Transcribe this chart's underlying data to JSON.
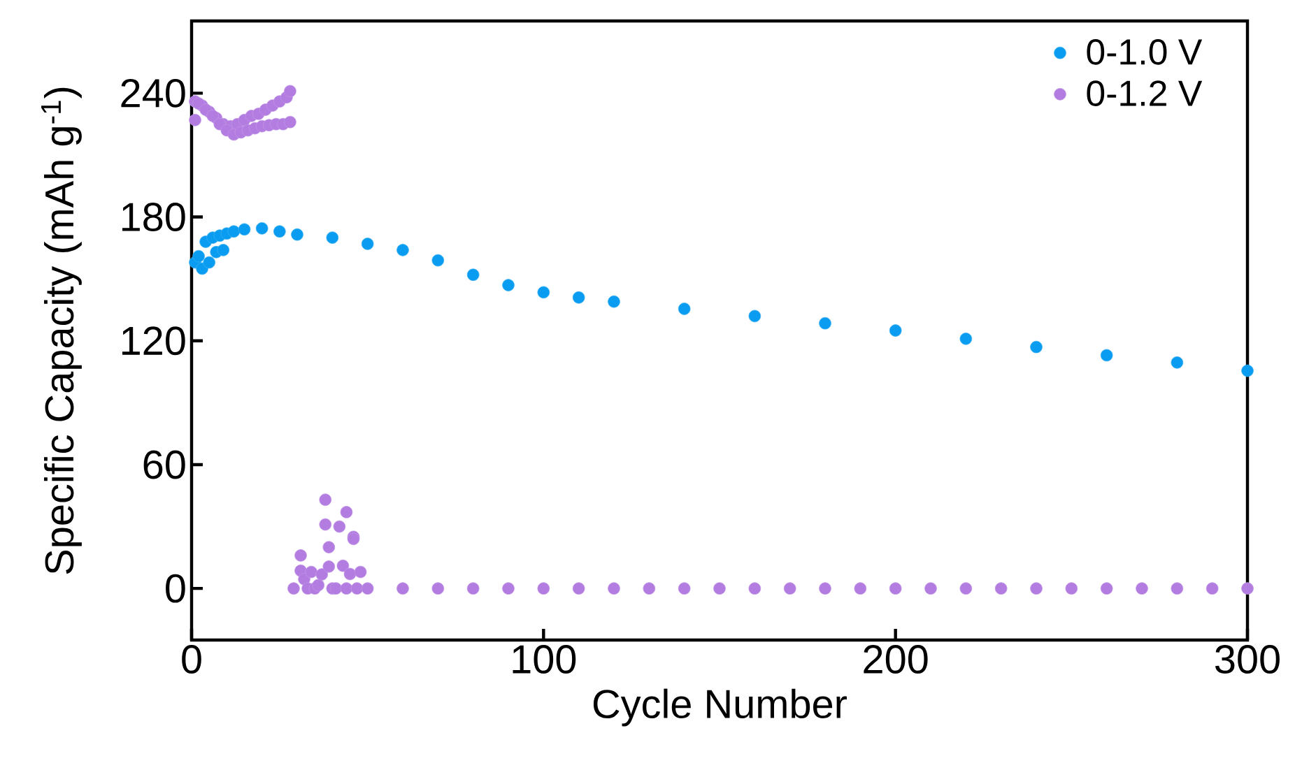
{
  "chart_data": {
    "type": "scatter",
    "xlabel": "Cycle Number",
    "ylabel": "Specific Capacity (mAh g$^{-1}$)",
    "xlim": [
      0,
      300
    ],
    "ylim": [
      -25,
      275
    ],
    "xticks": [
      0,
      100,
      200,
      300
    ],
    "yticks": [
      0,
      60,
      120,
      180,
      240
    ],
    "legend": "top right",
    "marker": "circle",
    "series": [
      {
        "name": "0-1.0 V",
        "color": "#0a9cf0",
        "x": [
          1,
          2,
          3,
          4,
          5,
          6,
          7,
          8,
          9,
          10,
          12,
          15,
          20,
          25,
          30,
          40,
          50,
          60,
          70,
          80,
          90,
          100,
          110,
          120,
          140,
          160,
          180,
          200,
          220,
          240,
          260,
          280,
          300
        ],
        "values": [
          158,
          161,
          155,
          168,
          158,
          170,
          163,
          171,
          164,
          172,
          173,
          174,
          174.5,
          173,
          171.5,
          170,
          167,
          164,
          159,
          152,
          147,
          143.5,
          141,
          139,
          135.5,
          132,
          128.5,
          125,
          121,
          117,
          113,
          109.5,
          105.5
        ]
      },
      {
        "name": "0-1.2 V",
        "color": "#b27ce0",
        "x": [
          1,
          3,
          5,
          7,
          9,
          11,
          13,
          15,
          17,
          19,
          21,
          23,
          25,
          27,
          28,
          1,
          2,
          4,
          6,
          8,
          10,
          12,
          14,
          16,
          18,
          20,
          22,
          24,
          26,
          28,
          29,
          31,
          31,
          32,
          33,
          34,
          35,
          36,
          37,
          38,
          38,
          39,
          39,
          40,
          41,
          42,
          43,
          44,
          44,
          45,
          46,
          46,
          47,
          48,
          50,
          60,
          70,
          80,
          90,
          100,
          110,
          120,
          130,
          140,
          150,
          160,
          170,
          180,
          190,
          200,
          210,
          220,
          230,
          240,
          250,
          260,
          270,
          280,
          290,
          300
        ],
        "values": [
          236,
          234,
          231,
          228,
          225,
          224,
          225,
          227,
          229,
          230,
          232,
          234,
          236,
          238,
          241,
          227,
          235,
          232,
          229,
          225,
          222,
          220,
          221,
          222,
          223,
          224,
          224.5,
          225,
          225,
          226,
          0,
          16,
          8.6,
          4.5,
          0,
          8,
          0,
          1.6,
          6.8,
          43,
          31,
          20,
          10.6,
          0,
          0,
          30,
          11,
          37,
          0,
          7,
          25,
          24,
          0,
          8,
          0,
          0,
          0,
          0,
          0,
          0,
          0,
          0,
          0,
          0,
          0,
          0,
          0,
          0,
          0,
          0,
          0,
          0,
          0,
          0,
          0,
          0,
          0,
          0,
          0,
          0
        ]
      }
    ]
  }
}
